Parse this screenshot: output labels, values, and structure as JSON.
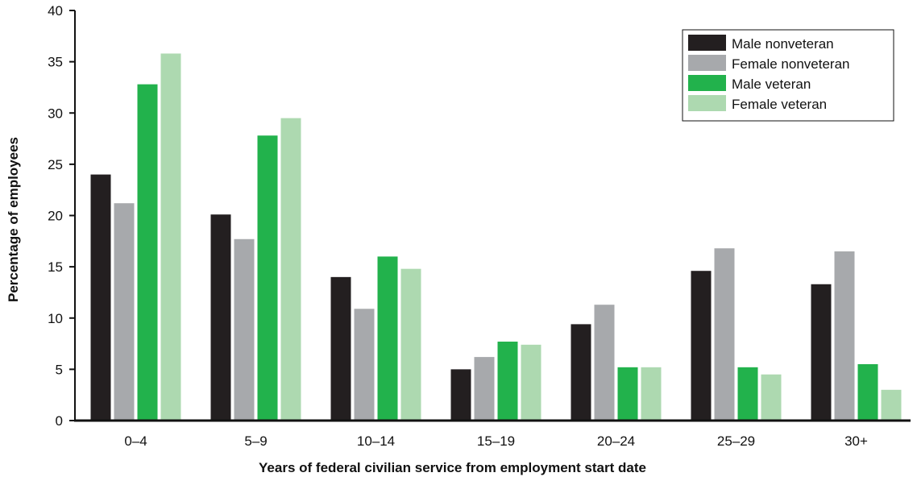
{
  "chart_data": {
    "type": "bar",
    "categories": [
      "0–4",
      "5–9",
      "10–14",
      "15–19",
      "20–24",
      "25–29",
      "30+"
    ],
    "series": [
      {
        "name": "Male nonveteran",
        "color": "#231f20",
        "values": [
          24.0,
          20.1,
          14.0,
          5.0,
          9.4,
          14.6,
          13.3
        ]
      },
      {
        "name": "Female nonveteran",
        "color": "#a7a9ac",
        "values": [
          21.2,
          17.7,
          10.9,
          6.2,
          11.3,
          16.8,
          16.5
        ]
      },
      {
        "name": "Male veteran",
        "color": "#22b24c",
        "values": [
          32.8,
          27.8,
          16.0,
          7.7,
          5.2,
          5.2,
          5.5
        ]
      },
      {
        "name": "Female veteran",
        "color": "#add9b0",
        "values": [
          35.8,
          29.5,
          14.8,
          7.4,
          5.2,
          4.5,
          3.0
        ]
      }
    ],
    "xlabel": "Years of federal civilian service from employment start date",
    "ylabel": "Percentage of employees",
    "ylim": [
      0,
      40
    ],
    "yticks": [
      0,
      5,
      10,
      15,
      20,
      25,
      30,
      35,
      40
    ],
    "grid": false,
    "legend_position": "top-right"
  }
}
